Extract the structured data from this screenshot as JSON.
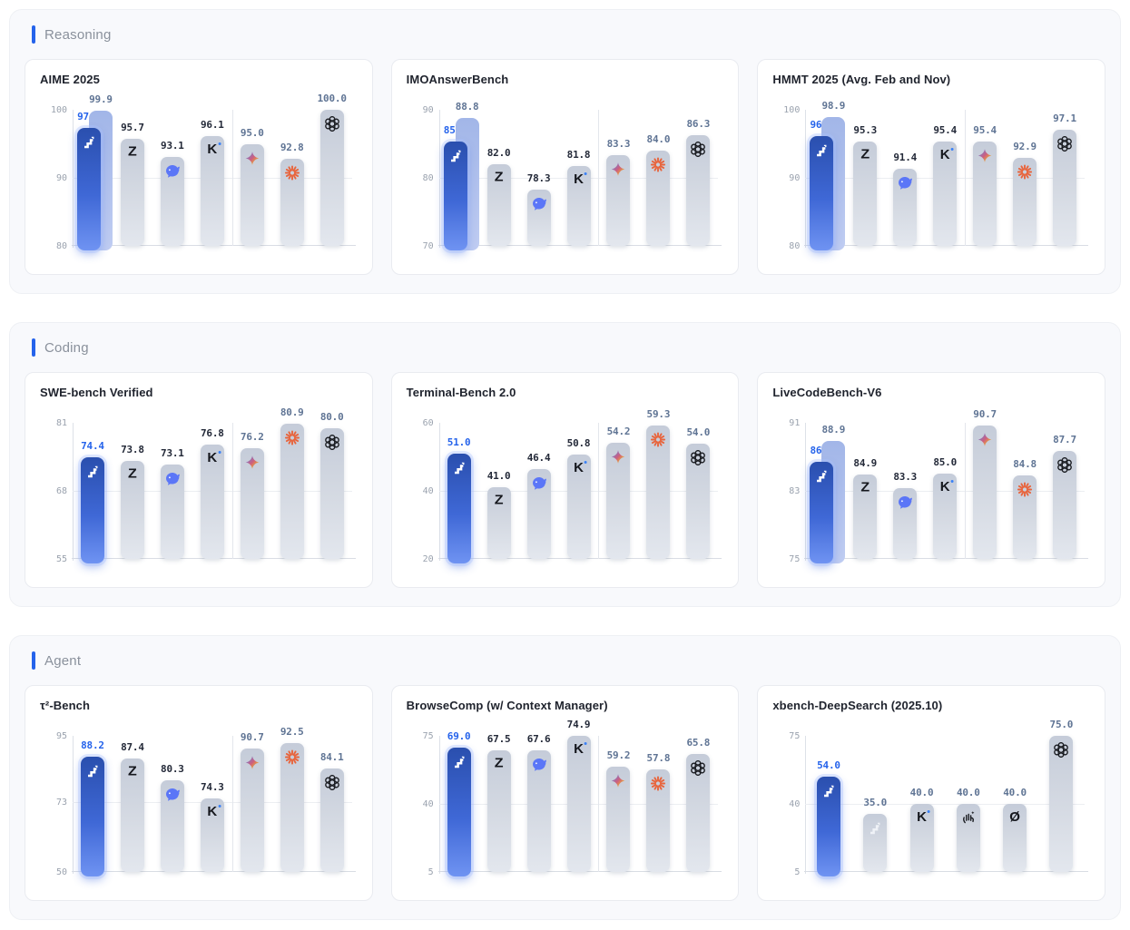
{
  "sections": [
    {
      "label": "Reasoning"
    },
    {
      "label": "Coding"
    },
    {
      "label": "Agent"
    }
  ],
  "colors": {
    "accent": "#2563eb",
    "highlight_bar_gradient": [
      "#2a4fae",
      "#6f93f2"
    ],
    "ghost_bar_gradient": [
      "#a2b6e8",
      "#c0cdf2"
    ],
    "default_bar_gradient": [
      "#c5ccd9",
      "#e3e7ee"
    ],
    "value_highlight": "#2563eb",
    "value_dark": "#232938",
    "value_slate": "#5f7494",
    "tick_text": "#9aa2ae",
    "whale_blue": "#5b76f7",
    "burst_orange": "#e8643c",
    "section_bg": "#f8f9fc",
    "card_bg": "#ffffff"
  },
  "icons": {
    "stair": "stair-step-logo-icon",
    "stair-light": "stair-step-logo-light-icon",
    "z": "letter-z-logo-icon",
    "whale": "whale-logo-icon",
    "k": "letter-k-logo-icon",
    "star4": "four-point-star-logo-icon",
    "burst": "orange-starburst-logo-icon",
    "knot": "hexagonal-knot-logo-icon",
    "hand": "hand-logo-icon",
    "oslash": "slashed-circle-logo-icon"
  },
  "chart_data": [
    {
      "type": "bar",
      "section": "Reasoning",
      "title": "AIME 2025",
      "ylim": [
        80,
        100
      ],
      "yticks": [
        80,
        90,
        100
      ],
      "divider_after_bar": 4,
      "bars": [
        {
          "icon": "stair",
          "value": 97.3,
          "label": "97.3",
          "emphasis": "highlight",
          "label_color": "blue",
          "ghost": {
            "value": 99.9,
            "label": "99.9"
          }
        },
        {
          "icon": "z",
          "value": 95.7,
          "label": "95.7",
          "label_color": "dark"
        },
        {
          "icon": "whale",
          "value": 93.1,
          "label": "93.1",
          "label_color": "dark"
        },
        {
          "icon": "k",
          "value": 96.1,
          "label": "96.1",
          "label_color": "dark"
        },
        {
          "icon": "star4",
          "value": 95.0,
          "label": "95.0",
          "label_color": "slate"
        },
        {
          "icon": "burst",
          "value": 92.8,
          "label": "92.8",
          "label_color": "slate"
        },
        {
          "icon": "knot",
          "value": 100.0,
          "label": "100.0",
          "label_color": "slate"
        }
      ]
    },
    {
      "type": "bar",
      "section": "Reasoning",
      "title": "IMOAnswerBench",
      "ylim": [
        70,
        90
      ],
      "yticks": [
        70,
        80,
        90
      ],
      "divider_after_bar": 4,
      "bars": [
        {
          "icon": "stair",
          "value": 85.4,
          "label": "85.4",
          "emphasis": "highlight",
          "label_color": "blue",
          "ghost": {
            "value": 88.8,
            "label": "88.8"
          }
        },
        {
          "icon": "z",
          "value": 82.0,
          "label": "82.0",
          "label_color": "dark"
        },
        {
          "icon": "whale",
          "value": 78.3,
          "label": "78.3",
          "label_color": "dark"
        },
        {
          "icon": "k",
          "value": 81.8,
          "label": "81.8",
          "label_color": "dark"
        },
        {
          "icon": "star4",
          "value": 83.3,
          "label": "83.3",
          "label_color": "slate"
        },
        {
          "icon": "burst",
          "value": 84.0,
          "label": "84.0",
          "label_color": "slate"
        },
        {
          "icon": "knot",
          "value": 86.3,
          "label": "86.3",
          "label_color": "slate"
        }
      ]
    },
    {
      "type": "bar",
      "section": "Reasoning",
      "title": "HMMT 2025 (Avg. Feb and Nov)",
      "ylim": [
        80,
        100
      ],
      "yticks": [
        80,
        90,
        100
      ],
      "divider_after_bar": 4,
      "bars": [
        {
          "icon": "stair",
          "value": 96.2,
          "label": "96.2",
          "emphasis": "highlight",
          "label_color": "blue",
          "ghost": {
            "value": 98.9,
            "label": "98.9"
          }
        },
        {
          "icon": "z",
          "value": 95.3,
          "label": "95.3",
          "label_color": "dark"
        },
        {
          "icon": "whale",
          "value": 91.4,
          "label": "91.4",
          "label_color": "dark"
        },
        {
          "icon": "k",
          "value": 95.4,
          "label": "95.4",
          "label_color": "dark"
        },
        {
          "icon": "star4",
          "value": 95.4,
          "label": "95.4",
          "label_color": "slate"
        },
        {
          "icon": "burst",
          "value": 92.9,
          "label": "92.9",
          "label_color": "slate"
        },
        {
          "icon": "knot",
          "value": 97.1,
          "label": "97.1",
          "label_color": "slate"
        }
      ]
    },
    {
      "type": "bar",
      "section": "Coding",
      "title": "SWE-bench Verified",
      "ylim": [
        55,
        81
      ],
      "yticks": [
        55,
        68,
        81
      ],
      "divider_after_bar": 4,
      "bars": [
        {
          "icon": "stair",
          "value": 74.4,
          "label": "74.4",
          "emphasis": "highlight",
          "label_color": "blue"
        },
        {
          "icon": "z",
          "value": 73.8,
          "label": "73.8",
          "label_color": "dark"
        },
        {
          "icon": "whale",
          "value": 73.1,
          "label": "73.1",
          "label_color": "dark"
        },
        {
          "icon": "k",
          "value": 76.8,
          "label": "76.8",
          "label_color": "dark"
        },
        {
          "icon": "star4",
          "value": 76.2,
          "label": "76.2",
          "label_color": "slate"
        },
        {
          "icon": "burst",
          "value": 80.9,
          "label": "80.9",
          "label_color": "slate"
        },
        {
          "icon": "knot",
          "value": 80.0,
          "label": "80.0",
          "label_color": "slate"
        }
      ]
    },
    {
      "type": "bar",
      "section": "Coding",
      "title": "Terminal-Bench 2.0",
      "ylim": [
        20,
        60
      ],
      "yticks": [
        20,
        40,
        60
      ],
      "divider_after_bar": 4,
      "bars": [
        {
          "icon": "stair",
          "value": 51.0,
          "label": "51.0",
          "emphasis": "highlight",
          "label_color": "blue"
        },
        {
          "icon": "z",
          "value": 41.0,
          "label": "41.0",
          "label_color": "dark"
        },
        {
          "icon": "whale",
          "value": 46.4,
          "label": "46.4",
          "label_color": "dark"
        },
        {
          "icon": "k",
          "value": 50.8,
          "label": "50.8",
          "label_color": "dark"
        },
        {
          "icon": "star4",
          "value": 54.2,
          "label": "54.2",
          "label_color": "slate"
        },
        {
          "icon": "burst",
          "value": 59.3,
          "label": "59.3",
          "label_color": "slate"
        },
        {
          "icon": "knot",
          "value": 54.0,
          "label": "54.0",
          "label_color": "slate"
        }
      ]
    },
    {
      "type": "bar",
      "section": "Coding",
      "title": "LiveCodeBench-V6",
      "ylim": [
        75,
        91
      ],
      "yticks": [
        75,
        83,
        91
      ],
      "divider_after_bar": 4,
      "bars": [
        {
          "icon": "stair",
          "value": 86.4,
          "label": "86.4",
          "emphasis": "highlight",
          "label_color": "blue",
          "ghost": {
            "value": 88.9,
            "label": "88.9"
          }
        },
        {
          "icon": "z",
          "value": 84.9,
          "label": "84.9",
          "label_color": "dark"
        },
        {
          "icon": "whale",
          "value": 83.3,
          "label": "83.3",
          "label_color": "dark"
        },
        {
          "icon": "k",
          "value": 85.0,
          "label": "85.0",
          "label_color": "dark"
        },
        {
          "icon": "star4",
          "value": 90.7,
          "label": "90.7",
          "label_color": "slate"
        },
        {
          "icon": "burst",
          "value": 84.8,
          "label": "84.8",
          "label_color": "slate"
        },
        {
          "icon": "knot",
          "value": 87.7,
          "label": "87.7",
          "label_color": "slate"
        }
      ]
    },
    {
      "type": "bar",
      "section": "Agent",
      "title": "τ²-Bench",
      "ylim": [
        50,
        95
      ],
      "yticks": [
        50,
        73,
        95
      ],
      "divider_after_bar": 4,
      "bars": [
        {
          "icon": "stair",
          "value": 88.2,
          "label": "88.2",
          "emphasis": "highlight",
          "label_color": "blue"
        },
        {
          "icon": "z",
          "value": 87.4,
          "label": "87.4",
          "label_color": "dark"
        },
        {
          "icon": "whale",
          "value": 80.3,
          "label": "80.3",
          "label_color": "dark"
        },
        {
          "icon": "k",
          "value": 74.3,
          "label": "74.3",
          "label_color": "dark"
        },
        {
          "icon": "star4",
          "value": 90.7,
          "label": "90.7",
          "label_color": "slate"
        },
        {
          "icon": "burst",
          "value": 92.5,
          "label": "92.5",
          "label_color": "slate"
        },
        {
          "icon": "knot",
          "value": 84.1,
          "label": "84.1",
          "label_color": "slate"
        }
      ]
    },
    {
      "type": "bar",
      "section": "Agent",
      "title": "BrowseComp (w/ Context Manager)",
      "ylim": [
        5,
        75
      ],
      "yticks": [
        5,
        40,
        75
      ],
      "divider_after_bar": 4,
      "bars": [
        {
          "icon": "stair",
          "value": 69.0,
          "label": "69.0",
          "emphasis": "highlight",
          "label_color": "blue"
        },
        {
          "icon": "z",
          "value": 67.5,
          "label": "67.5",
          "label_color": "dark"
        },
        {
          "icon": "whale",
          "value": 67.6,
          "label": "67.6",
          "label_color": "dark"
        },
        {
          "icon": "k",
          "value": 74.9,
          "label": "74.9",
          "label_color": "dark"
        },
        {
          "icon": "star4",
          "value": 59.2,
          "label": "59.2",
          "label_color": "slate"
        },
        {
          "icon": "burst",
          "value": 57.8,
          "label": "57.8",
          "label_color": "slate"
        },
        {
          "icon": "knot",
          "value": 65.8,
          "label": "65.8",
          "label_color": "slate"
        }
      ]
    },
    {
      "type": "bar",
      "section": "Agent",
      "title": "xbench-DeepSearch (2025.10)",
      "ylim": [
        5,
        75
      ],
      "yticks": [
        5,
        40,
        75
      ],
      "divider_after_bar": null,
      "bars": [
        {
          "icon": "stair",
          "value": 54.0,
          "label": "54.0",
          "emphasis": "highlight",
          "label_color": "blue"
        },
        {
          "icon": "stair-light",
          "value": 35.0,
          "label": "35.0",
          "label_color": "slate"
        },
        {
          "icon": "k",
          "value": 40.0,
          "label": "40.0",
          "label_color": "slate"
        },
        {
          "icon": "hand",
          "value": 40.0,
          "label": "40.0",
          "label_color": "slate"
        },
        {
          "icon": "oslash",
          "value": 40.0,
          "label": "40.0",
          "label_color": "slate"
        },
        {
          "icon": "knot",
          "value": 75.0,
          "label": "75.0",
          "label_color": "slate"
        }
      ]
    }
  ]
}
